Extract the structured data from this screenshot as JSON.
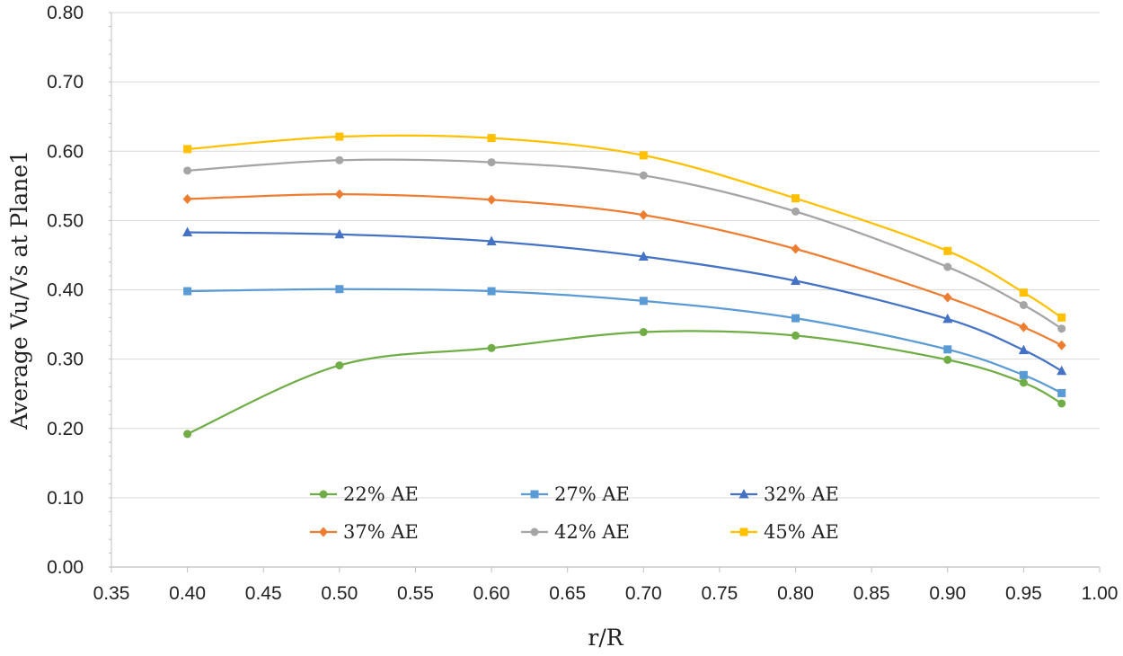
{
  "chart_data": {
    "type": "line",
    "xlabel": "r/R",
    "ylabel": "Average Vu/Vs at Plane1",
    "xlim": [
      0.35,
      1.0
    ],
    "ylim": [
      0.0,
      0.8
    ],
    "xticks": [
      "0.35",
      "0.40",
      "0.45",
      "0.50",
      "0.55",
      "0.60",
      "0.65",
      "0.70",
      "0.75",
      "0.80",
      "0.85",
      "0.90",
      "0.95",
      "1.00"
    ],
    "yticks": [
      "0.00",
      "0.10",
      "0.20",
      "0.30",
      "0.40",
      "0.50",
      "0.60",
      "0.70",
      "0.80"
    ],
    "grid": "horizontal",
    "legend_position": "bottom-center",
    "x": [
      0.4,
      0.5,
      0.6,
      0.7,
      0.8,
      0.9,
      0.95,
      0.975
    ],
    "series": [
      {
        "name": "22% AE",
        "color": "#70ad47",
        "marker": "circle",
        "values": [
          0.192,
          0.291,
          0.316,
          0.339,
          0.334,
          0.299,
          0.266,
          0.236
        ]
      },
      {
        "name": "27% AE",
        "color": "#5b9bd5",
        "marker": "square",
        "values": [
          0.398,
          0.401,
          0.398,
          0.384,
          0.359,
          0.314,
          0.277,
          0.251
        ]
      },
      {
        "name": "32% AE",
        "color": "#4472c4",
        "marker": "triangle",
        "values": [
          0.483,
          0.48,
          0.47,
          0.448,
          0.413,
          0.358,
          0.313,
          0.283
        ]
      },
      {
        "name": "37% AE",
        "color": "#ed7d31",
        "marker": "diamond",
        "values": [
          0.531,
          0.538,
          0.53,
          0.508,
          0.459,
          0.389,
          0.346,
          0.32
        ]
      },
      {
        "name": "42% AE",
        "color": "#a5a5a5",
        "marker": "circle",
        "values": [
          0.572,
          0.587,
          0.584,
          0.565,
          0.513,
          0.433,
          0.378,
          0.344
        ]
      },
      {
        "name": "45% AE",
        "color": "#ffc000",
        "marker": "square",
        "values": [
          0.603,
          0.621,
          0.619,
          0.594,
          0.532,
          0.456,
          0.396,
          0.36
        ]
      }
    ]
  }
}
